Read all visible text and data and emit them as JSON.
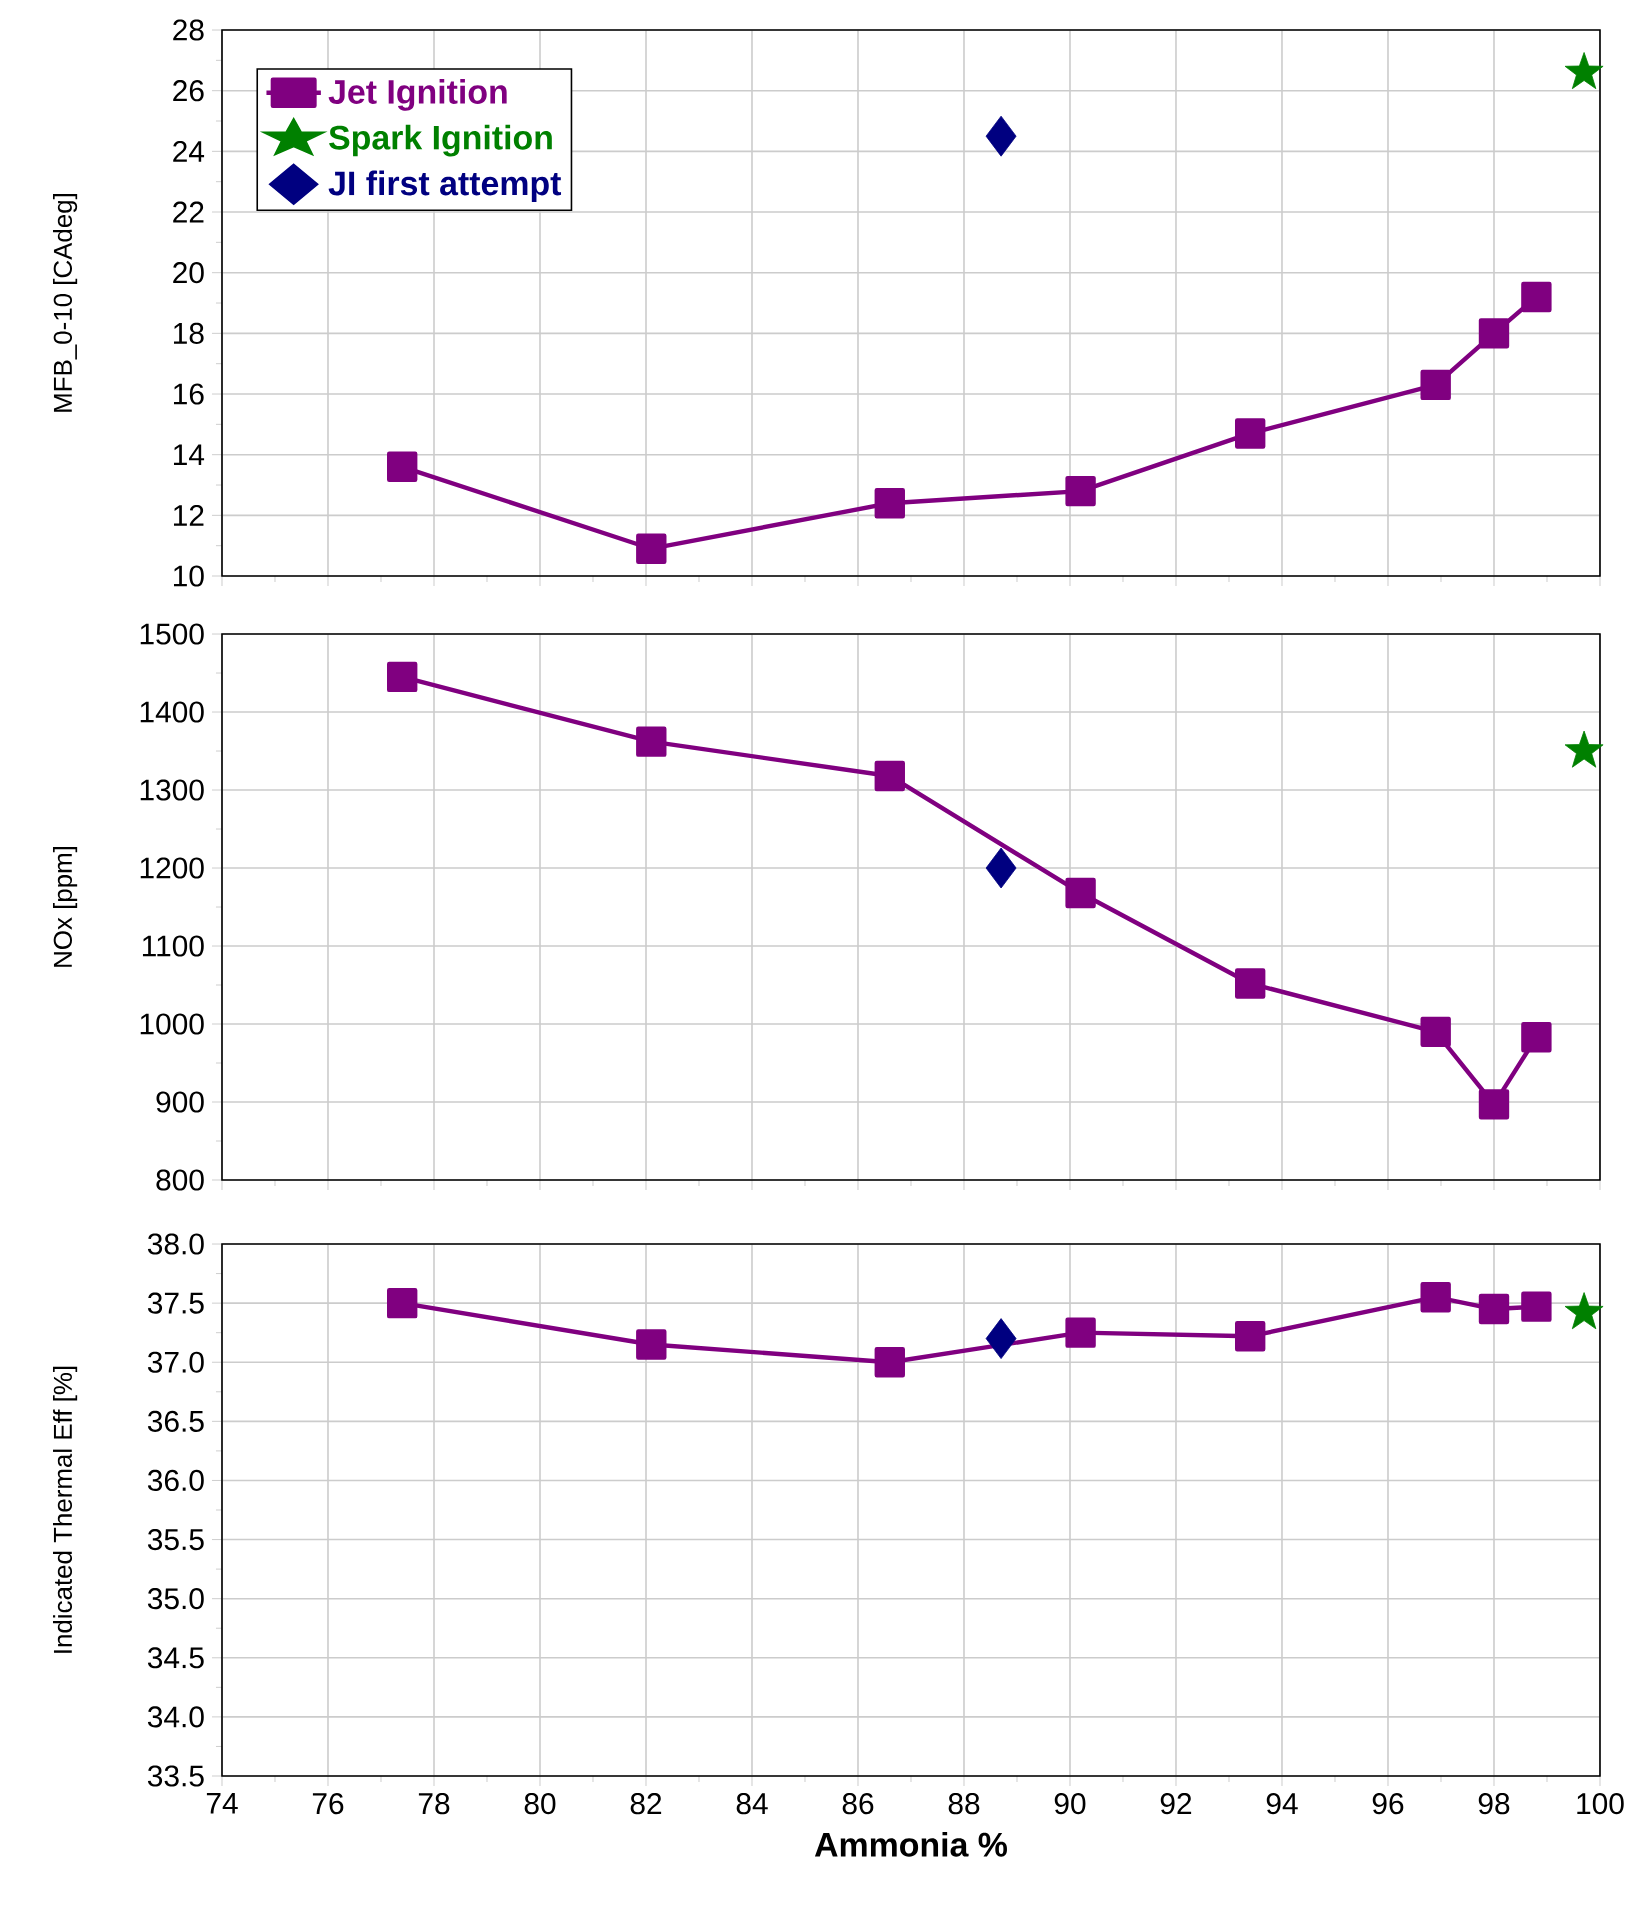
{
  "chart_data": [
    {
      "type": "line",
      "ylabel": "MFB_0-10 [CAdeg]",
      "xlim": [
        74,
        100
      ],
      "xticks": [
        74,
        76,
        78,
        80,
        82,
        84,
        86,
        88,
        90,
        92,
        94,
        96,
        98,
        100
      ],
      "ylim": [
        10,
        28
      ],
      "yticks": [
        10,
        12,
        14,
        16,
        18,
        20,
        22,
        24,
        26,
        28
      ],
      "grid": true,
      "legend": "top left",
      "tick_labels": "y",
      "series": [
        {
          "name": "Jet Ignition",
          "color": "#800080",
          "marker": "square",
          "line_style": "solid",
          "x": [
            77.4,
            82.1,
            86.6,
            90.2,
            93.4,
            96.9,
            98.0,
            98.8
          ],
          "values": [
            13.6,
            10.9,
            12.4,
            12.8,
            14.7,
            16.3,
            18.0,
            19.2
          ]
        },
        {
          "name": "Spark Ignition",
          "type": "scatter",
          "color": "#008000",
          "marker": "star",
          "x": [
            99.7
          ],
          "values": [
            26.6
          ]
        },
        {
          "name": "JI first attempt",
          "type": "scatter",
          "color": "#000080",
          "marker": "diamond",
          "x": [
            88.7
          ],
          "values": [
            24.5
          ]
        }
      ]
    },
    {
      "type": "line",
      "ylabel": "NOx [ppm]",
      "xlim": [
        74,
        100
      ],
      "xticks": [
        74,
        76,
        78,
        80,
        82,
        84,
        86,
        88,
        90,
        92,
        94,
        96,
        98,
        100
      ],
      "ylim": [
        800,
        1500
      ],
      "yticks": [
        800,
        900,
        1000,
        1100,
        1200,
        1300,
        1400,
        1500
      ],
      "grid": true,
      "tick_labels": "y",
      "series": [
        {
          "color": "#800080",
          "marker": "square",
          "line_style": "solid",
          "x": [
            77.4,
            82.1,
            86.6,
            90.2,
            93.4,
            96.9,
            98.0,
            98.8
          ],
          "values": [
            1445,
            1362,
            1318,
            1168,
            1052,
            990,
            897,
            983
          ]
        },
        {
          "type": "scatter",
          "color": "#008000",
          "marker": "star",
          "x": [
            99.7
          ],
          "values": [
            1350
          ]
        },
        {
          "type": "scatter",
          "color": "#000080",
          "marker": "diamond",
          "x": [
            88.7
          ],
          "values": [
            1200
          ]
        }
      ]
    },
    {
      "type": "line",
      "xlabel": "Ammonia %",
      "ylabel": "Indicated Thermal Eff [%]",
      "xlim": [
        74,
        100
      ],
      "xticks": [
        74,
        76,
        78,
        80,
        82,
        84,
        86,
        88,
        90,
        92,
        94,
        96,
        98,
        100
      ],
      "ylim": [
        33.5,
        38
      ],
      "yticks": [
        33.5,
        {
          "value": 34,
          "label": "34.0"
        },
        34.5,
        {
          "value": 35,
          "label": "35.0"
        },
        35.5,
        {
          "value": 36,
          "label": "36.0"
        },
        36.5,
        {
          "value": 37,
          "label": "37.0"
        },
        37.5,
        {
          "value": 38,
          "label": "38.0"
        }
      ],
      "grid": true,
      "series": [
        {
          "color": "#800080",
          "marker": "square",
          "line_style": "solid",
          "x": [
            77.4,
            82.1,
            86.6,
            90.2,
            93.4,
            96.9,
            98.0,
            98.8
          ],
          "values": [
            37.5,
            37.15,
            37.0,
            37.25,
            37.22,
            37.55,
            37.45,
            37.47
          ]
        },
        {
          "type": "scatter",
          "color": "#008000",
          "marker": "star",
          "x": [
            99.7
          ],
          "values": [
            37.42
          ]
        },
        {
          "type": "scatter",
          "color": "#000080",
          "marker": "diamond",
          "x": [
            88.7
          ],
          "values": [
            37.2
          ]
        }
      ]
    }
  ]
}
